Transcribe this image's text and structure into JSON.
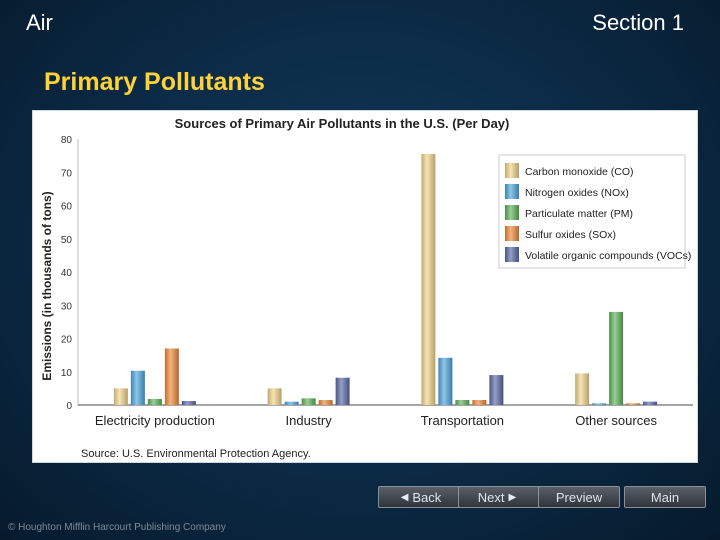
{
  "header": {
    "left": "Air",
    "right": "Section 1"
  },
  "slide_title": "Primary Pollutants",
  "nav": {
    "back": "Back",
    "next": "Next",
    "preview": "Preview",
    "main": "Main"
  },
  "copyright": "© Houghton Mifflin Harcourt Publishing Company",
  "chart_data": {
    "type": "bar",
    "title": "Sources of Primary Air Pollutants in the U.S. (Per Day)",
    "ylabel": "Emissions (in thousands of tons)",
    "xlabel": "",
    "source": "Source: U.S. Environmental Protection Agency.",
    "ylim": [
      0,
      80
    ],
    "yticks": [
      "0",
      "10",
      "20",
      "30",
      "40",
      "50",
      "60",
      "70",
      "80"
    ],
    "categories": [
      "Electricity production",
      "Industry",
      "Transportation",
      "Other sources"
    ],
    "legend_position": "top-right",
    "grid": false,
    "series": [
      {
        "name": "Carbon monoxide (CO)",
        "color": "#f3d58c",
        "values": [
          5,
          5,
          75.5,
          9.5
        ]
      },
      {
        "name": "Nitrogen oxides (NOx)",
        "color": "#4fa7dd",
        "values": [
          10.3,
          1,
          14.2,
          0.5
        ]
      },
      {
        "name": "Particulate matter (PM)",
        "color": "#5fb35a",
        "values": [
          1.8,
          2,
          1.5,
          28
        ]
      },
      {
        "name": "Sulfur oxides (SOx)",
        "color": "#f08a3c",
        "values": [
          17,
          1.5,
          1.5,
          0.5
        ]
      },
      {
        "name": "Volatile organic compounds (VOCs)",
        "color": "#5b6aa8",
        "values": [
          1.2,
          8.2,
          9,
          1
        ]
      }
    ]
  }
}
